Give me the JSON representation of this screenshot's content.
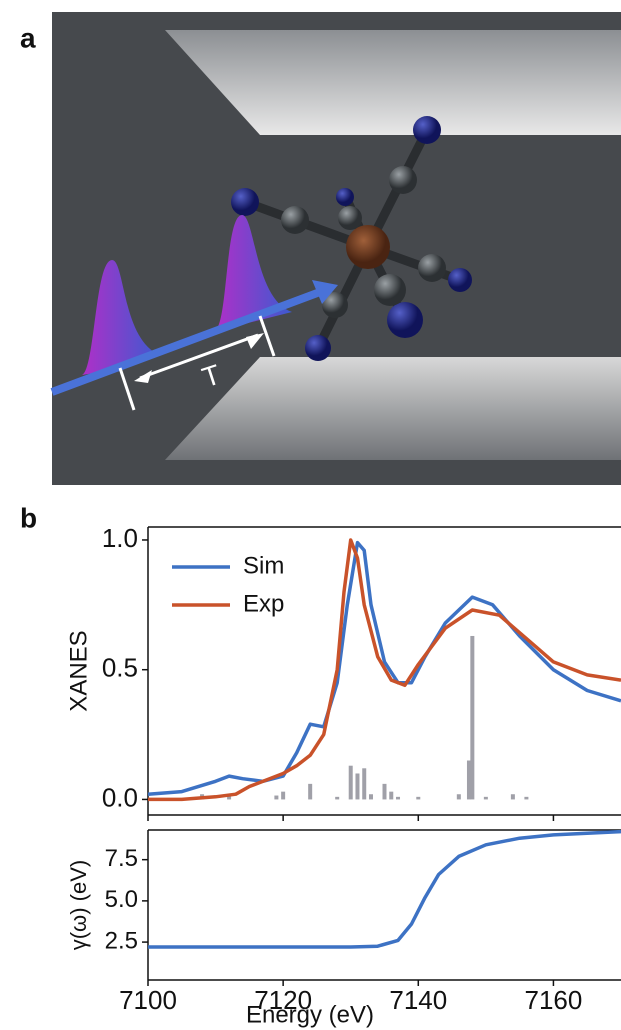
{
  "panels": {
    "a": "a",
    "b": "b"
  },
  "illustration": {
    "delay_label": "T"
  },
  "chart_data": [
    {
      "type": "line",
      "ylabel": "XANES",
      "xlim": [
        7100,
        7170
      ],
      "ylim": [
        -0.06,
        1.05
      ],
      "xticks": [
        7100,
        7120,
        7140,
        7160
      ],
      "yticks": [
        {
          "value": 0,
          "label": "0.0"
        },
        0.5,
        {
          "value": 1,
          "label": "1.0"
        }
      ],
      "legend": "upper left",
      "series": [
        {
          "name": "Sim",
          "color": "#3d72c4",
          "x": [
            7100,
            7105,
            7110,
            7112,
            7114,
            7117,
            7120,
            7122,
            7124,
            7126,
            7128,
            7129.5,
            7131,
            7132,
            7133,
            7135,
            7137,
            7139,
            7141,
            7144,
            7148,
            7151,
            7155,
            7160,
            7165,
            7170
          ],
          "values": [
            0.02,
            0.03,
            0.07,
            0.09,
            0.08,
            0.07,
            0.09,
            0.18,
            0.29,
            0.28,
            0.45,
            0.75,
            0.99,
            0.96,
            0.75,
            0.53,
            0.45,
            0.45,
            0.55,
            0.68,
            0.78,
            0.75,
            0.63,
            0.5,
            0.42,
            0.38
          ]
        },
        {
          "name": "Exp",
          "color": "#c9522a",
          "x": [
            7100,
            7105,
            7110,
            7113,
            7115,
            7118,
            7120,
            7122,
            7124,
            7126,
            7128,
            7129,
            7130,
            7131,
            7132,
            7134,
            7136,
            7138,
            7140,
            7144,
            7148,
            7152,
            7156,
            7160,
            7165,
            7170
          ],
          "values": [
            0.0,
            0.0,
            0.01,
            0.02,
            0.05,
            0.08,
            0.1,
            0.13,
            0.17,
            0.25,
            0.5,
            0.8,
            1.0,
            0.93,
            0.75,
            0.55,
            0.46,
            0.44,
            0.52,
            0.66,
            0.73,
            0.71,
            0.62,
            0.53,
            0.48,
            0.46
          ]
        }
      ],
      "sticks": {
        "color": "#a0a0a8",
        "x": [
          7108,
          7112,
          7119,
          7120,
          7124,
          7128,
          7130,
          7131,
          7132,
          7133,
          7135,
          7136,
          7137,
          7140,
          7146,
          7147.5,
          7148,
          7150,
          7154,
          7156
        ],
        "values": [
          0.02,
          0.02,
          0.015,
          0.03,
          0.06,
          0.01,
          0.13,
          0.1,
          0.12,
          0.02,
          0.06,
          0.03,
          0.01,
          0.01,
          0.02,
          0.15,
          0.63,
          0.01,
          0.02,
          0.01
        ]
      }
    },
    {
      "type": "line",
      "ylabel": "γ(ω) (eV)",
      "xlabel": "Energy (eV)",
      "xlim": [
        7100,
        7170
      ],
      "ylim": [
        0.2,
        9.3
      ],
      "xticks": [
        7100,
        7120,
        7140,
        7160
      ],
      "yticks": [
        2.5,
        {
          "value": 5,
          "label": "5.0"
        },
        7.5
      ],
      "series": [
        {
          "color": "#3d72c4",
          "x": [
            7100,
            7130,
            7134,
            7137,
            7139,
            7141,
            7143,
            7146,
            7150,
            7155,
            7160,
            7170
          ],
          "values": [
            2.2,
            2.2,
            2.25,
            2.6,
            3.6,
            5.2,
            6.6,
            7.7,
            8.4,
            8.8,
            9.0,
            9.2
          ]
        }
      ]
    }
  ]
}
